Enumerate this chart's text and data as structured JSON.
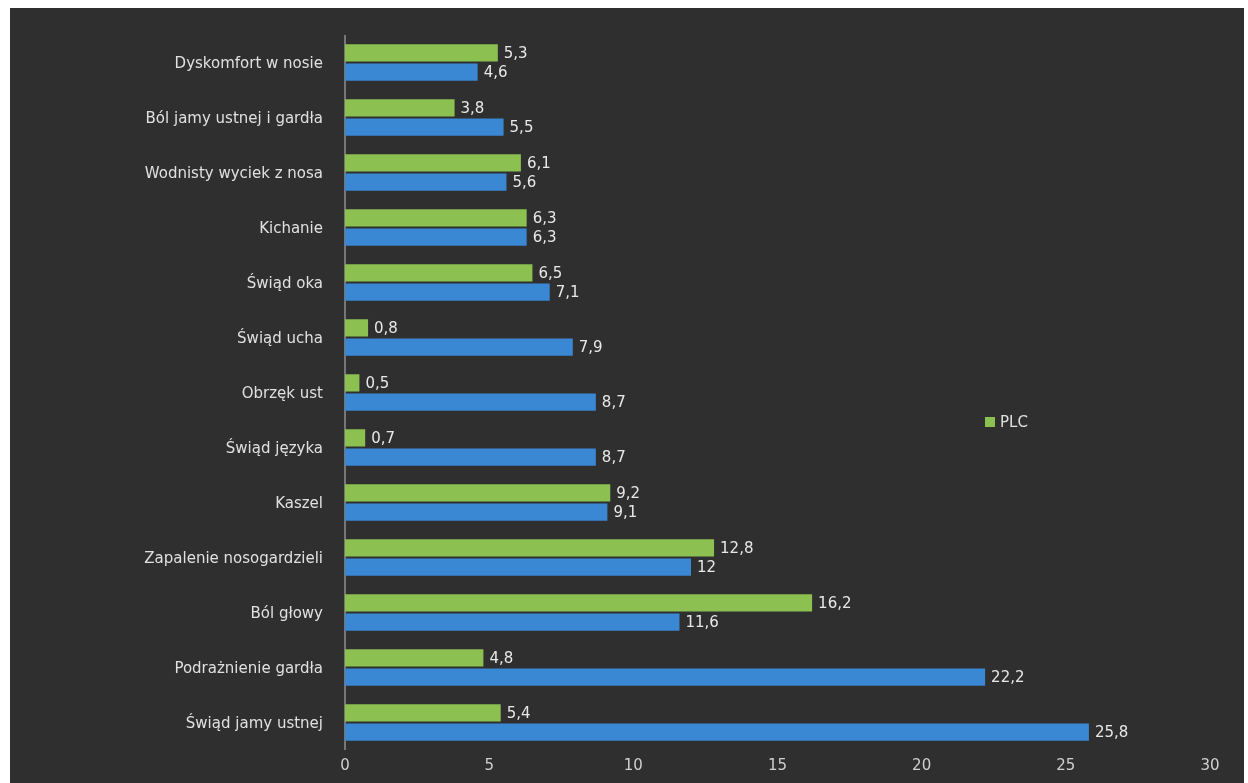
{
  "chart_data": {
    "type": "bar",
    "orientation": "horizontal",
    "categories": [
      "Dyskomfort w nosie",
      "Ból jamy ustnej i gardła",
      "Wodnisty wyciek z nosa",
      "Kichanie",
      "Świąd oka",
      "Świąd ucha",
      "Obrzęk ust",
      "Świąd języka",
      "Kaszel",
      "Zapalenie nosogardzieli",
      "Ból głowy",
      "Podrażnienie gardła",
      "Świąd jamy ustnej"
    ],
    "series": [
      {
        "name": "PLC",
        "color": "#8cc152",
        "values": [
          5.3,
          3.8,
          6.1,
          6.3,
          6.5,
          0.8,
          0.5,
          0.7,
          9.2,
          12.8,
          16.2,
          4.8,
          5.4
        ],
        "value_labels": [
          "5,3",
          "3,8",
          "6,1",
          "6,3",
          "6,5",
          "0,8",
          "0,5",
          "0,7",
          "9,2",
          "12,8",
          "16,2",
          "4,8",
          "5,4"
        ]
      },
      {
        "color": "#3a87d4",
        "values": [
          4.6,
          5.5,
          5.6,
          6.3,
          7.1,
          7.9,
          8.7,
          8.7,
          9.1,
          12,
          11.6,
          22.2,
          25.8
        ],
        "value_labels": [
          "4,6",
          "5,5",
          "5,6",
          "6,3",
          "7,1",
          "7,9",
          "8,7",
          "8,7",
          "9,1",
          "12",
          "11,6",
          "22,2",
          "25,8"
        ]
      }
    ],
    "xlim": [
      0,
      30
    ],
    "xticks": [
      0,
      5,
      10,
      15,
      20,
      25,
      30
    ],
    "legend": "right"
  }
}
